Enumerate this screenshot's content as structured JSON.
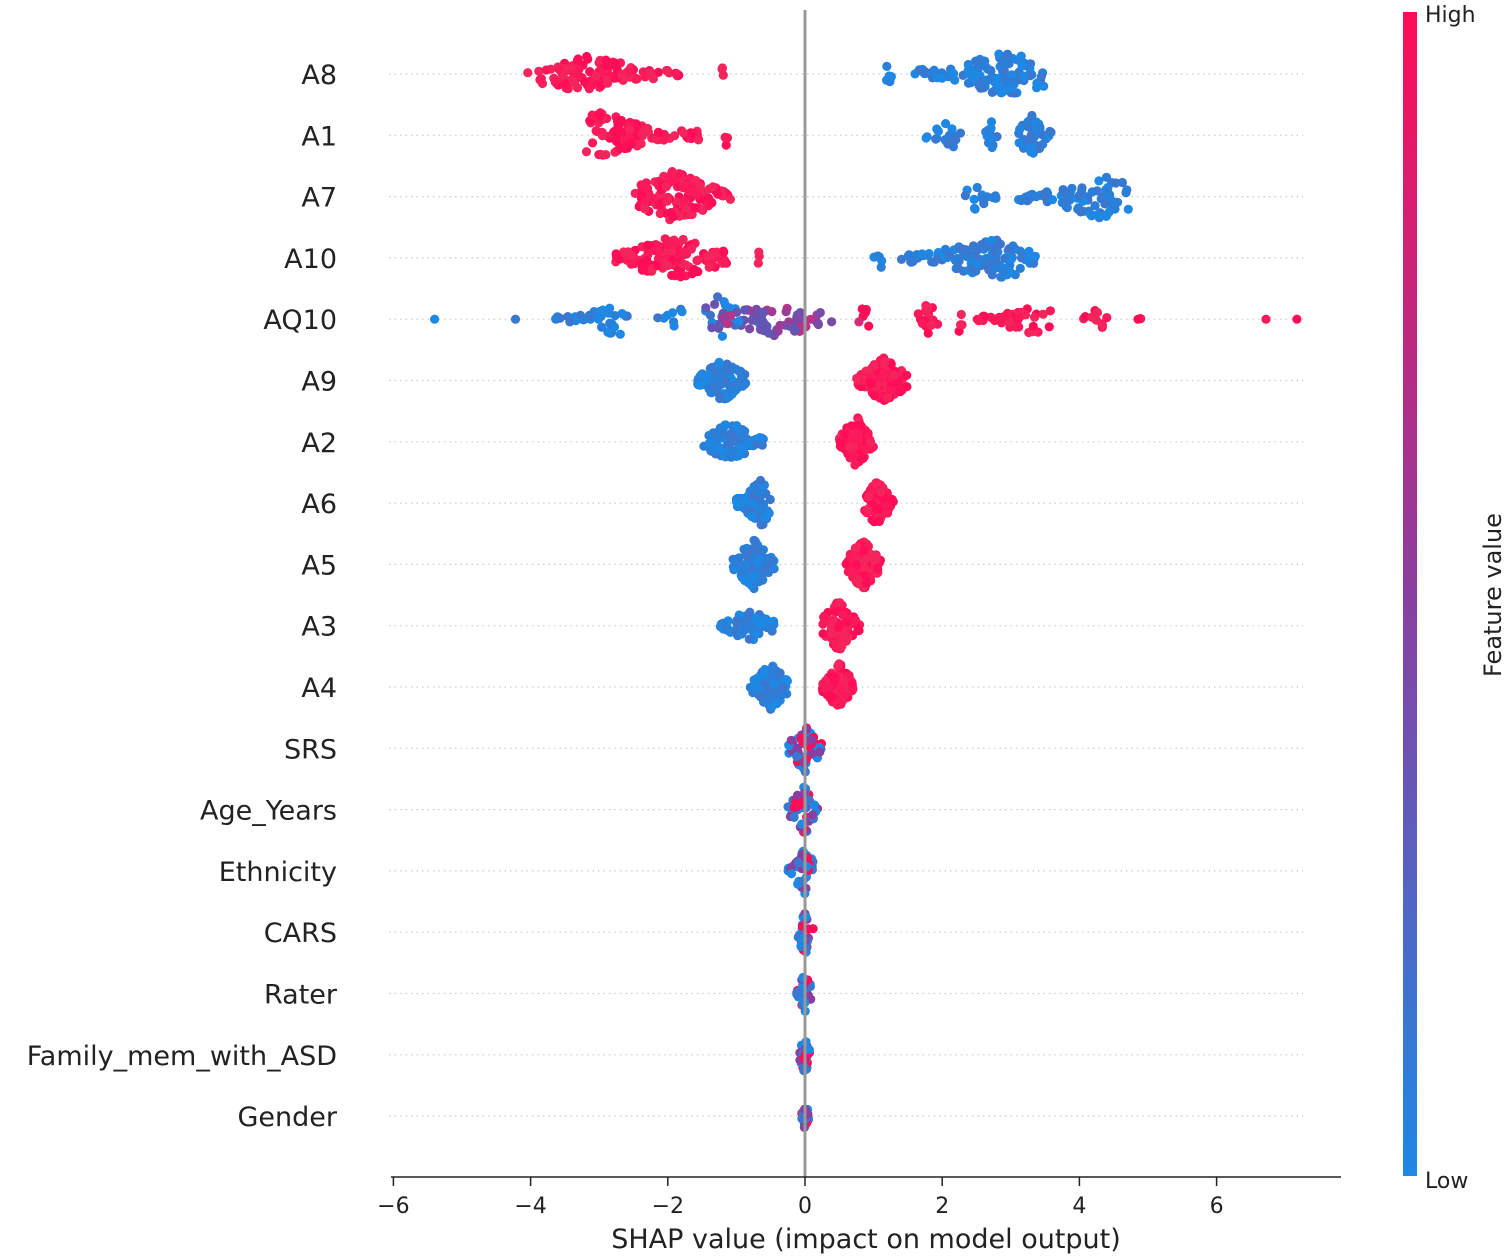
{
  "chart_data": {
    "type": "scatter",
    "subtype": "shap-beeswarm",
    "title": "",
    "xlabel": "SHAP value (impact on model output)",
    "ylabel": "",
    "xlim": [
      -6.2,
      7.8
    ],
    "xticks": [
      -6,
      -4,
      -2,
      0,
      2,
      4,
      6
    ],
    "xtick_labels": [
      "−6",
      "−4",
      "−2",
      "0",
      "2",
      "4",
      "6"
    ],
    "grid": false,
    "colorbar": {
      "title": "Feature value",
      "high_label": "High",
      "low_label": "Low",
      "high_color": "#ff0d57",
      "low_color": "#1e88e5"
    },
    "features": [
      {
        "name": "A8",
        "clusters": [
          {
            "min": -4.1,
            "max": -1.8,
            "peak": -3.2,
            "n": 110,
            "w": 0.6,
            "color": "high"
          },
          {
            "min": -1.22,
            "max": -1.18,
            "peak": -1.2,
            "n": 3,
            "w": 0.2,
            "color": "high"
          },
          {
            "min": 1.15,
            "max": 1.3,
            "peak": 1.2,
            "n": 6,
            "w": 0.4,
            "color": "low"
          },
          {
            "min": 1.6,
            "max": 3.5,
            "peak": 3.0,
            "n": 110,
            "w": 0.9,
            "color": "low"
          }
        ]
      },
      {
        "name": "A1",
        "clusters": [
          {
            "min": -3.2,
            "max": -1.5,
            "peak": -3.0,
            "n": 110,
            "w": 0.9,
            "color": "high"
          },
          {
            "min": -1.17,
            "max": -1.12,
            "peak": -1.15,
            "n": 3,
            "w": 0.2,
            "color": "high"
          },
          {
            "min": 1.7,
            "max": 2.3,
            "peak": 2.1,
            "n": 20,
            "w": 0.4,
            "color": "low"
          },
          {
            "min": 2.6,
            "max": 2.8,
            "peak": 2.7,
            "n": 15,
            "w": 0.5,
            "color": "low"
          },
          {
            "min": 3.1,
            "max": 3.6,
            "peak": 3.3,
            "n": 50,
            "w": 0.8,
            "color": "low"
          }
        ]
      },
      {
        "name": "A7",
        "clusters": [
          {
            "min": -2.5,
            "max": -1.05,
            "peak": -1.9,
            "n": 140,
            "w": 1.0,
            "color": "high"
          },
          {
            "min": 2.3,
            "max": 2.8,
            "peak": 2.5,
            "n": 15,
            "w": 0.4,
            "color": "low"
          },
          {
            "min": 3.1,
            "max": 4.75,
            "peak": 4.3,
            "n": 90,
            "w": 0.8,
            "color": "low"
          }
        ]
      },
      {
        "name": "A10",
        "clusters": [
          {
            "min": -2.8,
            "max": -1.1,
            "peak": -1.9,
            "n": 130,
            "w": 0.8,
            "color": "high"
          },
          {
            "min": -0.7,
            "max": -0.65,
            "peak": -0.68,
            "n": 3,
            "w": 0.3,
            "color": "high"
          },
          {
            "min": 1.0,
            "max": 1.15,
            "peak": 1.1,
            "n": 5,
            "w": 0.3,
            "color": "low"
          },
          {
            "min": 1.4,
            "max": 3.4,
            "peak": 2.8,
            "n": 120,
            "w": 0.8,
            "color": "low"
          }
        ]
      },
      {
        "name": "AQ10",
        "clusters": [
          {
            "min": -5.45,
            "max": -5.35,
            "peak": -5.4,
            "n": 1,
            "w": 0.0,
            "color": "low"
          },
          {
            "min": -4.25,
            "max": -4.2,
            "peak": -4.22,
            "n": 1,
            "w": 0.0,
            "color": "low"
          },
          {
            "min": -3.7,
            "max": -2.5,
            "peak": -2.7,
            "n": 35,
            "w": 0.6,
            "color": "low"
          },
          {
            "min": -2.15,
            "max": -1.6,
            "peak": -1.8,
            "n": 8,
            "w": 0.3,
            "color": "low"
          },
          {
            "min": -1.45,
            "max": -0.6,
            "peak": -1.3,
            "n": 35,
            "w": 0.9,
            "color": "lowmid"
          },
          {
            "min": -1.2,
            "max": 0.4,
            "peak": -0.4,
            "n": 55,
            "w": 0.6,
            "color": "mid"
          },
          {
            "min": 0.75,
            "max": 1.0,
            "peak": 0.85,
            "n": 6,
            "w": 0.4,
            "color": "highmid"
          },
          {
            "min": 1.6,
            "max": 2.0,
            "peak": 1.8,
            "n": 18,
            "w": 0.5,
            "color": "high"
          },
          {
            "min": 2.2,
            "max": 2.35,
            "peak": 2.25,
            "n": 4,
            "w": 0.4,
            "color": "high"
          },
          {
            "min": 2.5,
            "max": 3.6,
            "peak": 3.3,
            "n": 40,
            "w": 0.5,
            "color": "high"
          },
          {
            "min": 3.95,
            "max": 4.4,
            "peak": 4.3,
            "n": 12,
            "w": 0.4,
            "color": "high"
          },
          {
            "min": 4.85,
            "max": 4.9,
            "peak": 4.88,
            "n": 2,
            "w": 0.2,
            "color": "high"
          },
          {
            "min": 6.7,
            "max": 6.75,
            "peak": 6.72,
            "n": 1,
            "w": 0.0,
            "color": "high"
          },
          {
            "min": 7.15,
            "max": 7.2,
            "peak": 7.17,
            "n": 1,
            "w": 0.0,
            "color": "high"
          }
        ]
      },
      {
        "name": "A9",
        "clusters": [
          {
            "min": -1.6,
            "max": -0.85,
            "peak": -1.2,
            "n": 110,
            "w": 0.75,
            "color": "low"
          },
          {
            "min": 0.75,
            "max": 1.5,
            "peak": 1.15,
            "n": 120,
            "w": 0.85,
            "color": "high"
          }
        ]
      },
      {
        "name": "A2",
        "clusters": [
          {
            "min": -1.5,
            "max": -0.6,
            "peak": -1.1,
            "n": 110,
            "w": 0.7,
            "color": "low"
          },
          {
            "min": 0.5,
            "max": 1.0,
            "peak": 0.75,
            "n": 120,
            "w": 1.0,
            "color": "high"
          }
        ]
      },
      {
        "name": "A6",
        "clusters": [
          {
            "min": -1.0,
            "max": -0.5,
            "peak": -0.65,
            "n": 90,
            "w": 0.95,
            "color": "low"
          },
          {
            "min": 0.85,
            "max": 1.3,
            "peak": 1.05,
            "n": 100,
            "w": 0.85,
            "color": "high"
          }
        ]
      },
      {
        "name": "A5",
        "clusters": [
          {
            "min": -1.05,
            "max": -0.45,
            "peak": -0.75,
            "n": 110,
            "w": 0.95,
            "color": "low"
          },
          {
            "min": 0.6,
            "max": 1.1,
            "peak": 0.85,
            "n": 120,
            "w": 1.0,
            "color": "high"
          }
        ]
      },
      {
        "name": "A3",
        "clusters": [
          {
            "min": -1.25,
            "max": -0.45,
            "peak": -0.8,
            "n": 70,
            "w": 0.5,
            "color": "low"
          },
          {
            "min": 0.25,
            "max": 0.8,
            "peak": 0.5,
            "n": 100,
            "w": 1.0,
            "color": "high"
          }
        ]
      },
      {
        "name": "A4",
        "clusters": [
          {
            "min": -0.8,
            "max": -0.25,
            "peak": -0.5,
            "n": 80,
            "w": 0.9,
            "color": "low"
          },
          {
            "min": 0.25,
            "max": 0.7,
            "peak": 0.5,
            "n": 90,
            "w": 0.9,
            "color": "high"
          }
        ]
      },
      {
        "name": "SRS",
        "clusters": [
          {
            "min": -0.25,
            "max": 0.25,
            "peak": 0.0,
            "n": 50,
            "w": 0.9,
            "color": "mixed"
          }
        ]
      },
      {
        "name": "Age_Years",
        "clusters": [
          {
            "min": -0.25,
            "max": 0.25,
            "peak": 0.0,
            "n": 45,
            "w": 0.9,
            "color": "mixed"
          }
        ]
      },
      {
        "name": "Ethnicity",
        "clusters": [
          {
            "min": -0.25,
            "max": 0.15,
            "peak": 0.0,
            "n": 45,
            "w": 0.9,
            "color": "mixed"
          }
        ]
      },
      {
        "name": "CARS",
        "clusters": [
          {
            "min": -0.15,
            "max": 0.15,
            "peak": 0.0,
            "n": 35,
            "w": 0.8,
            "color": "mixed"
          }
        ]
      },
      {
        "name": "Rater",
        "clusters": [
          {
            "min": -0.12,
            "max": 0.12,
            "peak": 0.0,
            "n": 30,
            "w": 0.7,
            "color": "mixed"
          }
        ]
      },
      {
        "name": "Family_mem_with_ASD",
        "clusters": [
          {
            "min": -0.08,
            "max": 0.08,
            "peak": 0.0,
            "n": 30,
            "w": 0.7,
            "color": "mixed"
          }
        ]
      },
      {
        "name": "Gender",
        "clusters": [
          {
            "min": -0.05,
            "max": 0.05,
            "peak": 0.0,
            "n": 25,
            "w": 0.6,
            "color": "mixed"
          }
        ]
      }
    ]
  }
}
